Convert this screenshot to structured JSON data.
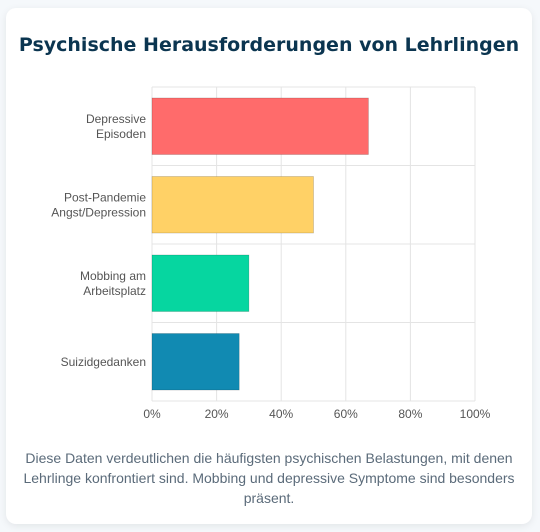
{
  "title": "Psychische Herausforderungen von Lehrlingen",
  "caption": "Diese Daten verdeutlichen die häufigsten psychischen Belastungen, mit denen Lehrlinge konfrontiert sind. Mobbing und depressive Symptome sind besonders präsent.",
  "colors": {
    "bars": [
      "#ff6b6b",
      "#ffd166",
      "#06d6a0",
      "#118ab2"
    ],
    "title": "#0b3550",
    "caption": "#5b6b7a"
  },
  "chart_data": {
    "type": "bar",
    "orientation": "horizontal",
    "categories": [
      [
        "Depressive",
        "Episoden"
      ],
      [
        "Post-Pandemie",
        "Angst/Depression"
      ],
      [
        "Mobbing am",
        "Arbeitsplatz"
      ],
      [
        "Suizidgedanken"
      ]
    ],
    "values": [
      67,
      50,
      30,
      27
    ],
    "xlim": [
      0,
      100
    ],
    "xticks": [
      0,
      20,
      40,
      60,
      80,
      100
    ],
    "tick_format": "%",
    "grid": true,
    "legend": "none"
  }
}
